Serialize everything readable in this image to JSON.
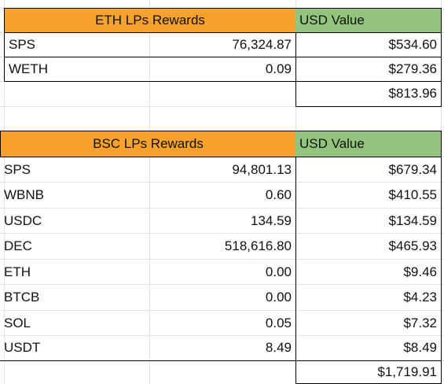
{
  "eth": {
    "header": "ETH LPs Rewards",
    "usd_header": "USD Value",
    "rows": [
      {
        "token": "SPS",
        "amount": "76,324.87",
        "usd": "$534.60"
      },
      {
        "token": "WETH",
        "amount": "0.09",
        "usd": "$279.36"
      }
    ],
    "total": "$813.96"
  },
  "bsc": {
    "header": "BSC LPs Rewards",
    "usd_header": "USD Value",
    "rows": [
      {
        "token": "SPS",
        "amount": "94,801.13",
        "usd": "$679.34"
      },
      {
        "token": "WBNB",
        "amount": "0.60",
        "usd": "$410.55"
      },
      {
        "token": "USDC",
        "amount": "134.59",
        "usd": "$134.59"
      },
      {
        "token": "DEC",
        "amount": "518,616.80",
        "usd": "$465.93"
      },
      {
        "token": "ETH",
        "amount": "0.00",
        "usd": "$9.46"
      },
      {
        "token": "BTCB",
        "amount": "0.00",
        "usd": "$4.23"
      },
      {
        "token": "SOL",
        "amount": "0.05",
        "usd": "$7.32"
      },
      {
        "token": "USDT",
        "amount": "8.49",
        "usd": "$8.49"
      }
    ],
    "total": "$1,719.91"
  },
  "colors": {
    "orange_header": "#f6a22c",
    "green_header": "#93c47d",
    "gridline": "#e3e3e3"
  }
}
